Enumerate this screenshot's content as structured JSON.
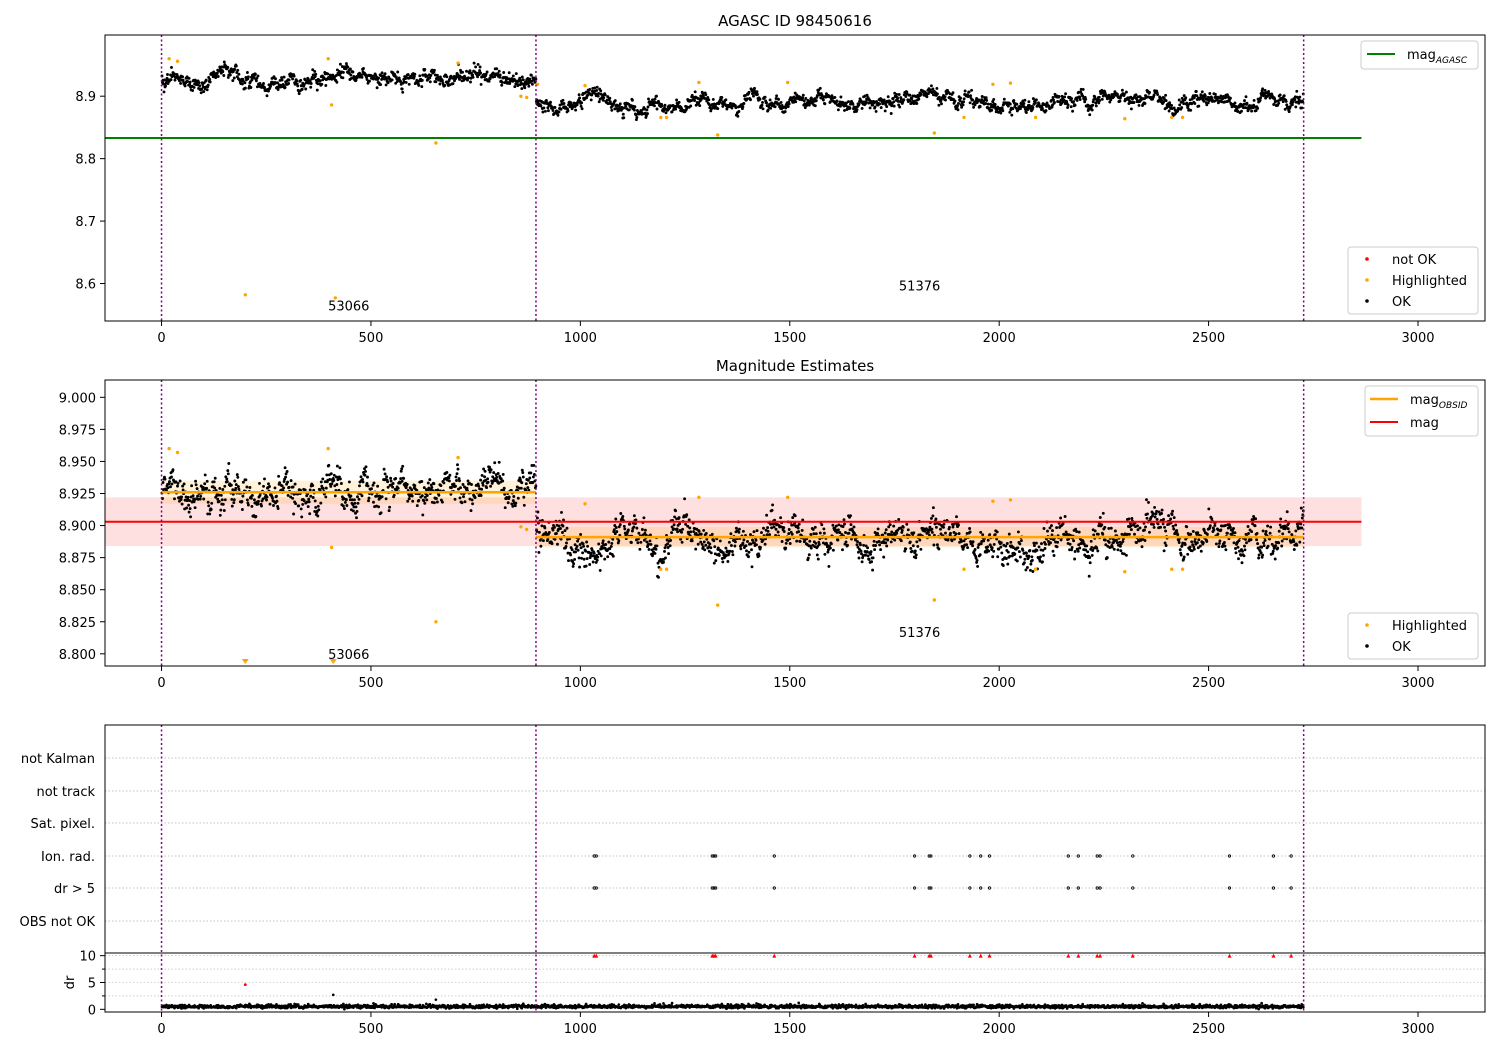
{
  "colors": {
    "ok": "#000000",
    "highlighted": "#ffa500",
    "not_ok": "#ff0000",
    "agasc_line": "#008000",
    "mag_line": "#ff0000",
    "obsid_line": "#ffa500",
    "obs_boundary": "#800080",
    "grid": "#b0b0b0"
  },
  "chart_data": [
    {
      "type": "scatter",
      "title": "AGASC ID 98450616",
      "xlim": [
        -135,
        3160
      ],
      "ylim": [
        8.54,
        8.998
      ],
      "x_ticks": [
        "0",
        "500",
        "1000",
        "1500",
        "2000",
        "2500",
        "3000"
      ],
      "y_ticks": [
        "8.6",
        "8.7",
        "8.8",
        "8.9"
      ],
      "legend_top": {
        "position": "upper right",
        "entries": [
          "mag_{AGASC}"
        ]
      },
      "legend_bottom": {
        "position": "lower right",
        "entries": [
          "not OK",
          "Highlighted",
          "OK"
        ]
      },
      "hlines": [
        {
          "name": "mag_{AGASC}",
          "y": 8.833,
          "x": [
            -135,
            2865
          ]
        }
      ],
      "obs_boundaries_x": [
        0,
        894,
        2727
      ],
      "obsid_labels": [
        {
          "text": "53066",
          "x": 447,
          "y": 8.565
        },
        {
          "text": "51376",
          "x": 1810,
          "y": 8.597
        }
      ],
      "series": [
        {
          "name": "OK",
          "segments": [
            {
              "x": [
                0,
                894
              ],
              "mean": 8.927,
              "std": 0.008
            },
            {
              "x": [
                894,
                2727
              ],
              "mean": 8.891,
              "std": 0.0075
            }
          ]
        },
        {
          "name": "Highlighted",
          "points": [
            [
              18,
              8.96
            ],
            [
              38,
              8.956
            ],
            [
              200,
              8.582
            ],
            [
              398,
              8.96
            ],
            [
              406,
              8.886
            ],
            [
              415,
              8.577
            ],
            [
              655,
              8.825
            ],
            [
              708,
              8.953
            ],
            [
              858,
              8.9
            ],
            [
              872,
              8.898
            ],
            [
              898,
              8.919
            ],
            [
              1011,
              8.917
            ],
            [
              1192,
              8.866
            ],
            [
              1206,
              8.866
            ],
            [
              1283,
              8.922
            ],
            [
              1328,
              8.838
            ],
            [
              1495,
              8.922
            ],
            [
              1845,
              8.841
            ],
            [
              1916,
              8.866
            ],
            [
              1985,
              8.919
            ],
            [
              2027,
              8.921
            ],
            [
              2087,
              8.866
            ],
            [
              2300,
              8.864
            ],
            [
              2412,
              8.866
            ],
            [
              2438,
              8.866
            ]
          ]
        },
        {
          "name": "not OK",
          "points": []
        }
      ]
    },
    {
      "type": "scatter",
      "title": "Magnitude Estimates",
      "xlim": [
        -135,
        3160
      ],
      "ylim": [
        8.7905,
        9.0135
      ],
      "x_ticks": [
        "0",
        "500",
        "1000",
        "1500",
        "2000",
        "2500",
        "3000"
      ],
      "y_ticks": [
        "8.800",
        "8.825",
        "8.850",
        "8.875",
        "8.900",
        "8.925",
        "8.950",
        "8.975",
        "9.000"
      ],
      "legend_top": {
        "position": "upper right",
        "entries": [
          "mag_{OBSID}",
          "mag"
        ]
      },
      "legend_bottom": {
        "position": "lower right",
        "entries": [
          "Highlighted",
          "OK"
        ]
      },
      "mag": {
        "name": "mag",
        "y": 8.903,
        "band": [
          8.884,
          8.922
        ],
        "x": [
          -135,
          2865
        ]
      },
      "mag_obsid": [
        {
          "x": [
            0,
            894
          ],
          "y": 8.926,
          "band": [
            8.917,
            8.935
          ]
        },
        {
          "x": [
            894,
            2727
          ],
          "y": 8.891,
          "band": [
            8.883,
            8.899
          ]
        }
      ],
      "obs_boundaries_x": [
        0,
        894,
        2727
      ],
      "obsid_labels": [
        {
          "text": "53066",
          "x": 447,
          "y": 8.8,
          "flag": 10
        },
        {
          "text": "51376",
          "x": 1810,
          "y": 8.817
        }
      ],
      "series": [
        {
          "name": "OK",
          "segments": [
            {
              "x": [
                0,
                894
              ],
              "mean": 8.926,
              "std": 0.0085
            },
            {
              "x": [
                894,
                2727
              ],
              "mean": 8.89,
              "std": 0.0085
            }
          ]
        },
        {
          "name": "Highlighted",
          "points": [
            [
              18,
              8.96
            ],
            [
              38,
              8.957
            ],
            [
              398,
              8.96
            ],
            [
              406,
              8.883
            ],
            [
              655,
              8.825
            ],
            [
              708,
              8.953
            ],
            [
              858,
              8.899
            ],
            [
              872,
              8.897
            ],
            [
              1011,
              8.917
            ],
            [
              1192,
              8.866
            ],
            [
              1206,
              8.866
            ],
            [
              1283,
              8.922
            ],
            [
              1328,
              8.838
            ],
            [
              1495,
              8.922
            ],
            [
              1845,
              8.842
            ],
            [
              1916,
              8.866
            ],
            [
              1985,
              8.919
            ],
            [
              2027,
              8.92
            ],
            [
              2087,
              8.866
            ],
            [
              2300,
              8.864
            ],
            [
              2412,
              8.866
            ],
            [
              2438,
              8.866
            ]
          ],
          "off_scale_below_x": [
            200,
            410
          ]
        }
      ]
    },
    {
      "type": "scatter",
      "title": "",
      "xlim": [
        -135,
        3160
      ],
      "x_ticks": [
        "0",
        "500",
        "1000",
        "1500",
        "2000",
        "2500",
        "3000"
      ],
      "flag_rows": [
        "not Kalman",
        "not track",
        "Sat. pixel.",
        "Ion. rad.",
        "dr > 5",
        "OBS not OK"
      ],
      "flag_points": {
        "Ion. rad.": [
          1033,
          1038,
          1315,
          1319,
          1323,
          1463,
          1798,
          1833,
          1837,
          1930,
          1956,
          1977,
          2165,
          2189,
          2234,
          2241,
          2319,
          2550,
          2655,
          2697
        ],
        "dr > 5": [
          1033,
          1038,
          1315,
          1319,
          1323,
          1463,
          1798,
          1833,
          1837,
          1930,
          1956,
          1977,
          2165,
          2189,
          2234,
          2241,
          2319,
          2550,
          2655,
          2697
        ]
      },
      "dr_panel": {
        "ylabel": "dr",
        "ylim": [
          -0.5,
          10.5
        ],
        "y_ticks": [
          "0",
          "5",
          "10"
        ],
        "clipped_at": 10,
        "clipped_x": [
          1033,
          1038,
          1315,
          1319,
          1323,
          1463,
          1798,
          1833,
          1837,
          1930,
          1956,
          1977,
          2165,
          2189,
          2234,
          2241,
          2319,
          2550,
          2655,
          2697
        ],
        "not_ok_points": [
          [
            200,
            4.6
          ]
        ],
        "outlier_points": [
          [
            410,
            2.7
          ],
          [
            655,
            1.8
          ]
        ],
        "typical_range": [
          0.0,
          1.3
        ]
      },
      "obs_boundaries_x": [
        0,
        894,
        2727
      ]
    }
  ]
}
